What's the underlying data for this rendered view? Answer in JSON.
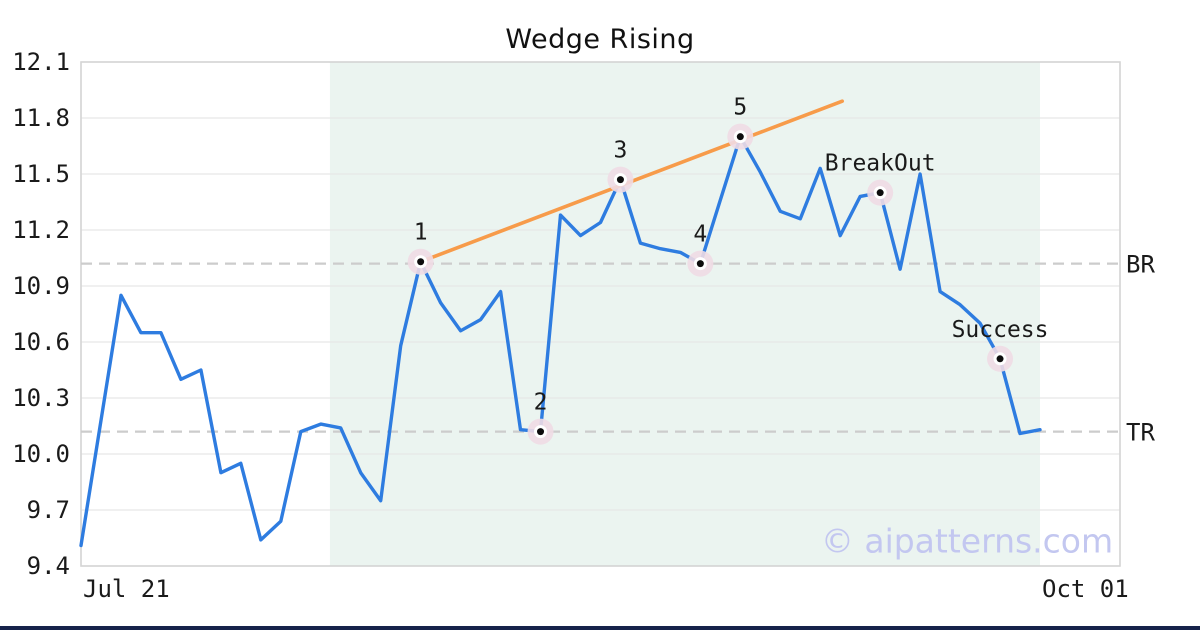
{
  "title": "Wedge Rising",
  "watermark": "© aipatterns.com",
  "colors": {
    "line": "#2e7ce0",
    "trend": "#f79b4a",
    "shade": "#ebf4f0",
    "grid": "#e7e7e7",
    "spine": "#d4d4d4",
    "dash": "#cccccc",
    "halo": "#f0dce4",
    "dot": "#0d0d0d",
    "text": "#1a1a1a",
    "watermark_color": "#c3c7f0",
    "footer": "#16224a"
  },
  "axes": {
    "y_ticks": [
      {
        "label": "12.1",
        "value": 12.1
      },
      {
        "label": "11.8",
        "value": 11.8
      },
      {
        "label": "11.5",
        "value": 11.5
      },
      {
        "label": "11.2",
        "value": 11.2
      },
      {
        "label": "10.9",
        "value": 10.9
      },
      {
        "label": "10.6",
        "value": 10.6
      },
      {
        "label": "10.3",
        "value": 10.3
      },
      {
        "label": "10.0",
        "value": 10.0
      },
      {
        "label": "9.7",
        "value": 9.7
      },
      {
        "label": "9.4",
        "value": 9.4
      }
    ],
    "x_ticks": [
      {
        "label": "Jul 21"
      },
      {
        "label": "Oct 01"
      }
    ],
    "ylim": [
      9.4,
      12.1
    ]
  },
  "chart_data": {
    "type": "line",
    "title": "Wedge Rising",
    "x_range": [
      "Jul 21",
      "Oct 01"
    ],
    "ylim": [
      9.4,
      12.1
    ],
    "grid": "horizontal",
    "values": [
      9.51,
      10.18,
      10.85,
      10.65,
      10.65,
      10.4,
      10.45,
      9.9,
      9.95,
      9.54,
      9.64,
      10.12,
      10.16,
      10.14,
      9.9,
      9.75,
      10.58,
      11.03,
      10.81,
      10.66,
      10.72,
      10.87,
      10.13,
      10.12,
      11.28,
      11.17,
      11.24,
      11.47,
      11.13,
      11.1,
      11.08,
      11.02,
      11.36,
      11.7,
      11.51,
      11.3,
      11.26,
      11.53,
      11.17,
      11.38,
      11.4,
      10.99,
      11.5,
      10.87,
      10.8,
      10.7,
      10.51,
      10.11,
      10.13
    ],
    "annotations": [
      {
        "label": "1",
        "index": 17,
        "value": 11.03
      },
      {
        "label": "2",
        "index": 23,
        "value": 10.12
      },
      {
        "label": "3",
        "index": 27,
        "value": 11.47
      },
      {
        "label": "4",
        "index": 31,
        "value": 11.02
      },
      {
        "label": "5",
        "index": 33,
        "value": 11.7
      },
      {
        "label": "BreakOut",
        "index": 40,
        "value": 11.4
      },
      {
        "label": "Success",
        "index": 46,
        "value": 10.51
      }
    ],
    "levels": [
      {
        "label": "BR",
        "value": 11.02
      },
      {
        "label": "TR",
        "value": 10.12
      }
    ],
    "trend_line": {
      "x1_index": 17,
      "y1": 11.03,
      "x2_index": 38.1,
      "y2": 11.89
    },
    "shade_region": {
      "from_index": 12.46,
      "to_index": 48
    }
  }
}
